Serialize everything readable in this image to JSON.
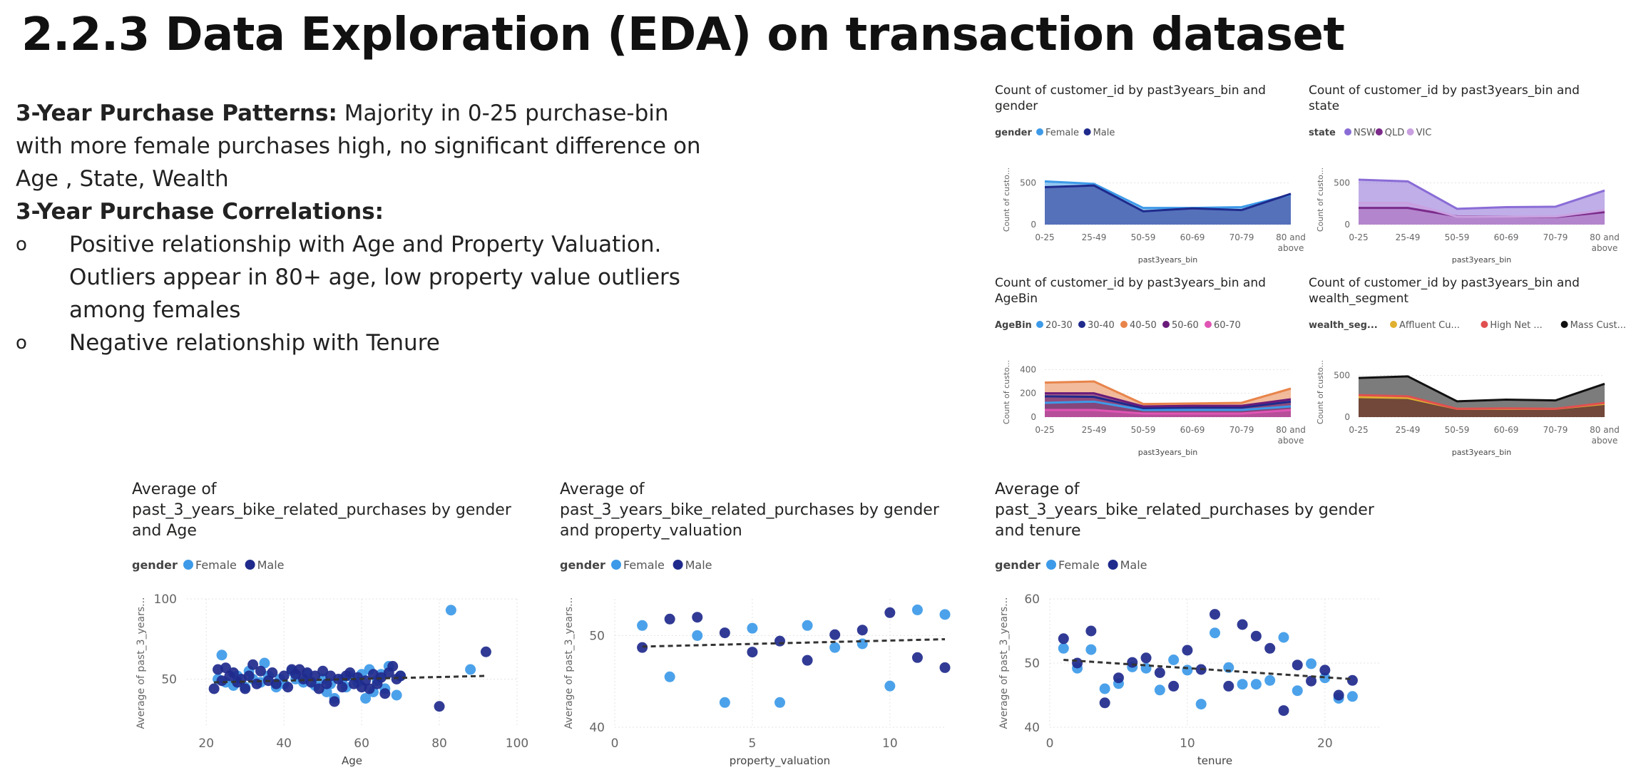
{
  "page": {
    "title": "2.2.3 Data Exploration (EDA) on transaction dataset",
    "notes": {
      "p1_bold": "3-Year Purchase Patterns:",
      "p1_rest": " Majority in 0-25 purchase-bin  with more female purchases high, no significant difference  on Age , State, Wealth",
      "p2_bold": "3-Year Purchase Correlations:",
      "bullet_marker": "o",
      "bullet1": "Positive relationship  with Age and Property Valuation. Outliers appear in 80+ age, low property value outliers among females",
      "bullet2": "Negative relationship  with Tenure"
    }
  },
  "chart_data": [
    {
      "id": "c1",
      "type": "area",
      "title": [
        "Count of customer_id by past3years_bin and",
        "gender"
      ],
      "legend_title": "gender",
      "categories": [
        "0-25",
        "25-49",
        "50-59",
        "60-69",
        "70-79",
        "80 and above"
      ],
      "category_lines": [
        [
          "0-25"
        ],
        [
          "25-49"
        ],
        [
          "50-59"
        ],
        [
          "60-69"
        ],
        [
          "70-79"
        ],
        [
          "80 and",
          "above"
        ]
      ],
      "xlabel": "past3years_bin",
      "ylabel": "Count of custo...",
      "ylim": [
        0,
        600
      ],
      "yticks": [
        0,
        500
      ],
      "series": [
        {
          "name": "Female",
          "color": "#3d9ae8",
          "values": [
            520,
            490,
            200,
            200,
            210,
            360
          ]
        },
        {
          "name": "Male",
          "color": "#1f2a8c",
          "values": [
            450,
            470,
            160,
            195,
            175,
            370
          ]
        }
      ]
    },
    {
      "id": "c2",
      "type": "area",
      "title": [
        "Count of customer_id by past3years_bin and",
        "state"
      ],
      "legend_title": "state",
      "categories": [
        "0-25",
        "25-49",
        "50-59",
        "60-69",
        "70-79",
        "80 and above"
      ],
      "category_lines": [
        [
          "0-25"
        ],
        [
          "25-49"
        ],
        [
          "50-59"
        ],
        [
          "60-69"
        ],
        [
          "70-79"
        ],
        [
          "80 and",
          "above"
        ]
      ],
      "xlabel": "past3years_bin",
      "ylabel": "Count of custo...",
      "ylim": [
        0,
        600
      ],
      "yticks": [
        0,
        500
      ],
      "series": [
        {
          "name": "NSW",
          "color": "#8a6cd6",
          "values": [
            540,
            520,
            190,
            210,
            215,
            410
          ]
        },
        {
          "name": "QLD",
          "color": "#7b2a8a",
          "values": [
            200,
            200,
            100,
            95,
            90,
            150
          ]
        },
        {
          "name": "VIC",
          "color": "#c9a0e0",
          "values": [
            260,
            260,
            95,
            95,
            95,
            175
          ]
        }
      ]
    },
    {
      "id": "c3",
      "type": "area",
      "title": [
        "Count of customer_id by past3years_bin and",
        "AgeBin"
      ],
      "legend_title": "AgeBin",
      "categories": [
        "0-25",
        "25-49",
        "50-59",
        "60-69",
        "70-79",
        "80 and above"
      ],
      "category_lines": [
        [
          "0-25"
        ],
        [
          "25-49"
        ],
        [
          "50-59"
        ],
        [
          "60-69"
        ],
        [
          "70-79"
        ],
        [
          "80 and",
          "above"
        ]
      ],
      "xlabel": "past3years_bin",
      "ylabel": "Count of custo...",
      "ylim": [
        0,
        420
      ],
      "yticks": [
        0,
        200,
        400
      ],
      "series": [
        {
          "name": "20-30",
          "color": "#3d9ae8",
          "values": [
            120,
            130,
            60,
            60,
            60,
            90
          ]
        },
        {
          "name": "30-40",
          "color": "#1f2a8c",
          "values": [
            175,
            170,
            75,
            80,
            80,
            130
          ]
        },
        {
          "name": "40-50",
          "color": "#e8844a",
          "values": [
            290,
            300,
            110,
            115,
            120,
            240
          ]
        },
        {
          "name": "50-60",
          "color": "#6a1b7a",
          "values": [
            200,
            200,
            90,
            95,
            95,
            150
          ]
        },
        {
          "name": "60-70",
          "color": "#e055b4",
          "values": [
            60,
            60,
            30,
            30,
            30,
            60
          ]
        }
      ]
    },
    {
      "id": "c4",
      "type": "area",
      "title": [
        "Count of customer_id by past3years_bin and",
        "wealth_segment"
      ],
      "legend_title": "wealth_seg...",
      "categories": [
        "0-25",
        "25-49",
        "50-59",
        "60-69",
        "70-79",
        "80 and above"
      ],
      "category_lines": [
        [
          "0-25"
        ],
        [
          "25-49"
        ],
        [
          "50-59"
        ],
        [
          "60-69"
        ],
        [
          "70-79"
        ],
        [
          "80 and",
          "above"
        ]
      ],
      "xlabel": "past3years_bin",
      "ylabel": "Count of custo...",
      "ylim": [
        0,
        600
      ],
      "yticks": [
        0,
        500
      ],
      "series": [
        {
          "name": "Affluent Cu...",
          "color": "#e0b030",
          "values": [
            240,
            230,
            100,
            100,
            100,
            160
          ]
        },
        {
          "name": "High Net ...",
          "color": "#e05050",
          "values": [
            265,
            250,
            100,
            105,
            100,
            170
          ]
        },
        {
          "name": "Mass Cust...",
          "color": "#111111",
          "values": [
            470,
            490,
            190,
            210,
            200,
            400
          ]
        }
      ]
    },
    {
      "id": "s1",
      "type": "scatter",
      "title": [
        "Average of",
        "past_3_years_bike_related_purchases by gender",
        "and Age"
      ],
      "legend_title": "gender",
      "xlabel": "Age",
      "ylabel": "Average of past_3_years...",
      "xlim": [
        15,
        100
      ],
      "xticks": [
        20,
        40,
        60,
        80,
        100
      ],
      "ylim": [
        20,
        100
      ],
      "yticks": [
        50,
        100
      ],
      "trend": [
        [
          22,
          48
        ],
        [
          92,
          52
        ]
      ],
      "series": [
        {
          "name": "Female",
          "color": "#3d9ae8",
          "points": [
            [
              23,
              50
            ],
            [
              24,
              65
            ],
            [
              25,
              48
            ],
            [
              27,
              46
            ],
            [
              28,
              52
            ],
            [
              30,
              45
            ],
            [
              31,
              55
            ],
            [
              32,
              50
            ],
            [
              34,
              48
            ],
            [
              35,
              60
            ],
            [
              36,
              52
            ],
            [
              38,
              45
            ],
            [
              39,
              50
            ],
            [
              40,
              47
            ],
            [
              42,
              55
            ],
            [
              43,
              50
            ],
            [
              45,
              48
            ],
            [
              46,
              53
            ],
            [
              48,
              46
            ],
            [
              50,
              50
            ],
            [
              51,
              42
            ],
            [
              52,
              47
            ],
            [
              53,
              38
            ],
            [
              55,
              50
            ],
            [
              56,
              45
            ],
            [
              57,
              52
            ],
            [
              59,
              48
            ],
            [
              60,
              53
            ],
            [
              61,
              38
            ],
            [
              62,
              56
            ],
            [
              63,
              42
            ],
            [
              64,
              49
            ],
            [
              65,
              53
            ],
            [
              66,
              44
            ],
            [
              67,
              58
            ],
            [
              69,
              40
            ],
            [
              70,
              52
            ],
            [
              83,
              93
            ],
            [
              88,
              56
            ]
          ]
        },
        {
          "name": "Male",
          "color": "#1f2a8c",
          "points": [
            [
              22,
              44
            ],
            [
              23,
              56
            ],
            [
              24,
              49
            ],
            [
              25,
              57
            ],
            [
              26,
              52
            ],
            [
              27,
              54
            ],
            [
              28,
              48
            ],
            [
              29,
              50
            ],
            [
              30,
              44
            ],
            [
              31,
              52
            ],
            [
              32,
              59
            ],
            [
              33,
              47
            ],
            [
              34,
              55
            ],
            [
              36,
              49
            ],
            [
              37,
              54
            ],
            [
              38,
              47
            ],
            [
              40,
              52
            ],
            [
              41,
              45
            ],
            [
              42,
              56
            ],
            [
              43,
              53
            ],
            [
              44,
              56
            ],
            [
              45,
              50
            ],
            [
              46,
              54
            ],
            [
              47,
              48
            ],
            [
              48,
              52
            ],
            [
              49,
              44
            ],
            [
              50,
              55
            ],
            [
              51,
              47
            ],
            [
              52,
              52
            ],
            [
              53,
              36
            ],
            [
              54,
              50
            ],
            [
              55,
              45
            ],
            [
              56,
              52
            ],
            [
              57,
              54
            ],
            [
              58,
              47
            ],
            [
              59,
              51
            ],
            [
              60,
              45
            ],
            [
              61,
              49
            ],
            [
              62,
              44
            ],
            [
              63,
              53
            ],
            [
              64,
              47
            ],
            [
              65,
              51
            ],
            [
              66,
              41
            ],
            [
              67,
              54
            ],
            [
              68,
              58
            ],
            [
              69,
              50
            ],
            [
              70,
              52
            ],
            [
              80,
              33
            ],
            [
              92,
              67
            ]
          ]
        }
      ]
    },
    {
      "id": "s2",
      "type": "scatter",
      "title": [
        "Average of",
        "past_3_years_bike_related_purchases by gender",
        "and property_valuation"
      ],
      "legend_title": "gender",
      "xlabel": "property_valuation",
      "ylabel": "Average of past_3_years...",
      "xlim": [
        0,
        12
      ],
      "xticks": [
        0,
        5,
        10
      ],
      "ylim": [
        40,
        54
      ],
      "yticks": [
        40,
        50
      ],
      "trend": [
        [
          1,
          48.8
        ],
        [
          12,
          49.6
        ]
      ],
      "series": [
        {
          "name": "Female",
          "color": "#3d9ae8",
          "points": [
            [
              1,
              51.1
            ],
            [
              2,
              45.5
            ],
            [
              3,
              50
            ],
            [
              4,
              42.7
            ],
            [
              5,
              50.8
            ],
            [
              6,
              42.7
            ],
            [
              7,
              51.1
            ],
            [
              8,
              48.7
            ],
            [
              9,
              49.1
            ],
            [
              10,
              44.5
            ],
            [
              11,
              52.8
            ],
            [
              12,
              52.3
            ]
          ]
        },
        {
          "name": "Male",
          "color": "#1f2a8c",
          "points": [
            [
              1,
              48.7
            ],
            [
              2,
              51.8
            ],
            [
              3,
              52
            ],
            [
              4,
              50.3
            ],
            [
              5,
              48.2
            ],
            [
              6,
              49.4
            ],
            [
              7,
              47.3
            ],
            [
              8,
              50.1
            ],
            [
              9,
              50.6
            ],
            [
              10,
              52.5
            ],
            [
              11,
              47.6
            ],
            [
              12,
              46.5
            ]
          ]
        }
      ]
    },
    {
      "id": "s3",
      "type": "scatter",
      "title": [
        "Average of",
        "past_3_years_bike_related_purchases by gender",
        "and tenure"
      ],
      "legend_title": "gender",
      "xlabel": "tenure",
      "ylabel": "Average of past_3_years...",
      "xlim": [
        0,
        24
      ],
      "xticks": [
        0,
        10,
        20
      ],
      "ylim": [
        40,
        60
      ],
      "yticks": [
        40,
        50,
        60
      ],
      "trend": [
        [
          1,
          50.5
        ],
        [
          22,
          47.5
        ]
      ],
      "series": [
        {
          "name": "Female",
          "color": "#3d9ae8",
          "points": [
            [
              1,
              52.3
            ],
            [
              2,
              49.2
            ],
            [
              3,
              52.1
            ],
            [
              4,
              46
            ],
            [
              5,
              46.8
            ],
            [
              6,
              49.4
            ],
            [
              7,
              49.2
            ],
            [
              8,
              45.8
            ],
            [
              9,
              50.5
            ],
            [
              10,
              48.9
            ],
            [
              11,
              43.6
            ],
            [
              12,
              54.7
            ],
            [
              13,
              49.3
            ],
            [
              14,
              46.7
            ],
            [
              15,
              46.7
            ],
            [
              16,
              47.3
            ],
            [
              17,
              54
            ],
            [
              18,
              45.7
            ],
            [
              19,
              49.9
            ],
            [
              20,
              47.7
            ],
            [
              21,
              44.5
            ],
            [
              22,
              44.8
            ]
          ]
        },
        {
          "name": "Male",
          "color": "#1f2a8c",
          "points": [
            [
              1,
              53.8
            ],
            [
              2,
              50
            ],
            [
              3,
              55
            ],
            [
              4,
              43.8
            ],
            [
              5,
              47.7
            ],
            [
              6,
              50.1
            ],
            [
              7,
              50.8
            ],
            [
              8,
              48.5
            ],
            [
              9,
              46.4
            ],
            [
              10,
              52
            ],
            [
              11,
              49
            ],
            [
              12,
              57.6
            ],
            [
              13,
              46.4
            ],
            [
              14,
              56
            ],
            [
              15,
              54.2
            ],
            [
              16,
              52.3
            ],
            [
              17,
              42.6
            ],
            [
              18,
              49.7
            ],
            [
              19,
              47.2
            ],
            [
              20,
              48.9
            ],
            [
              21,
              45
            ],
            [
              22,
              47.3
            ]
          ]
        }
      ]
    }
  ]
}
